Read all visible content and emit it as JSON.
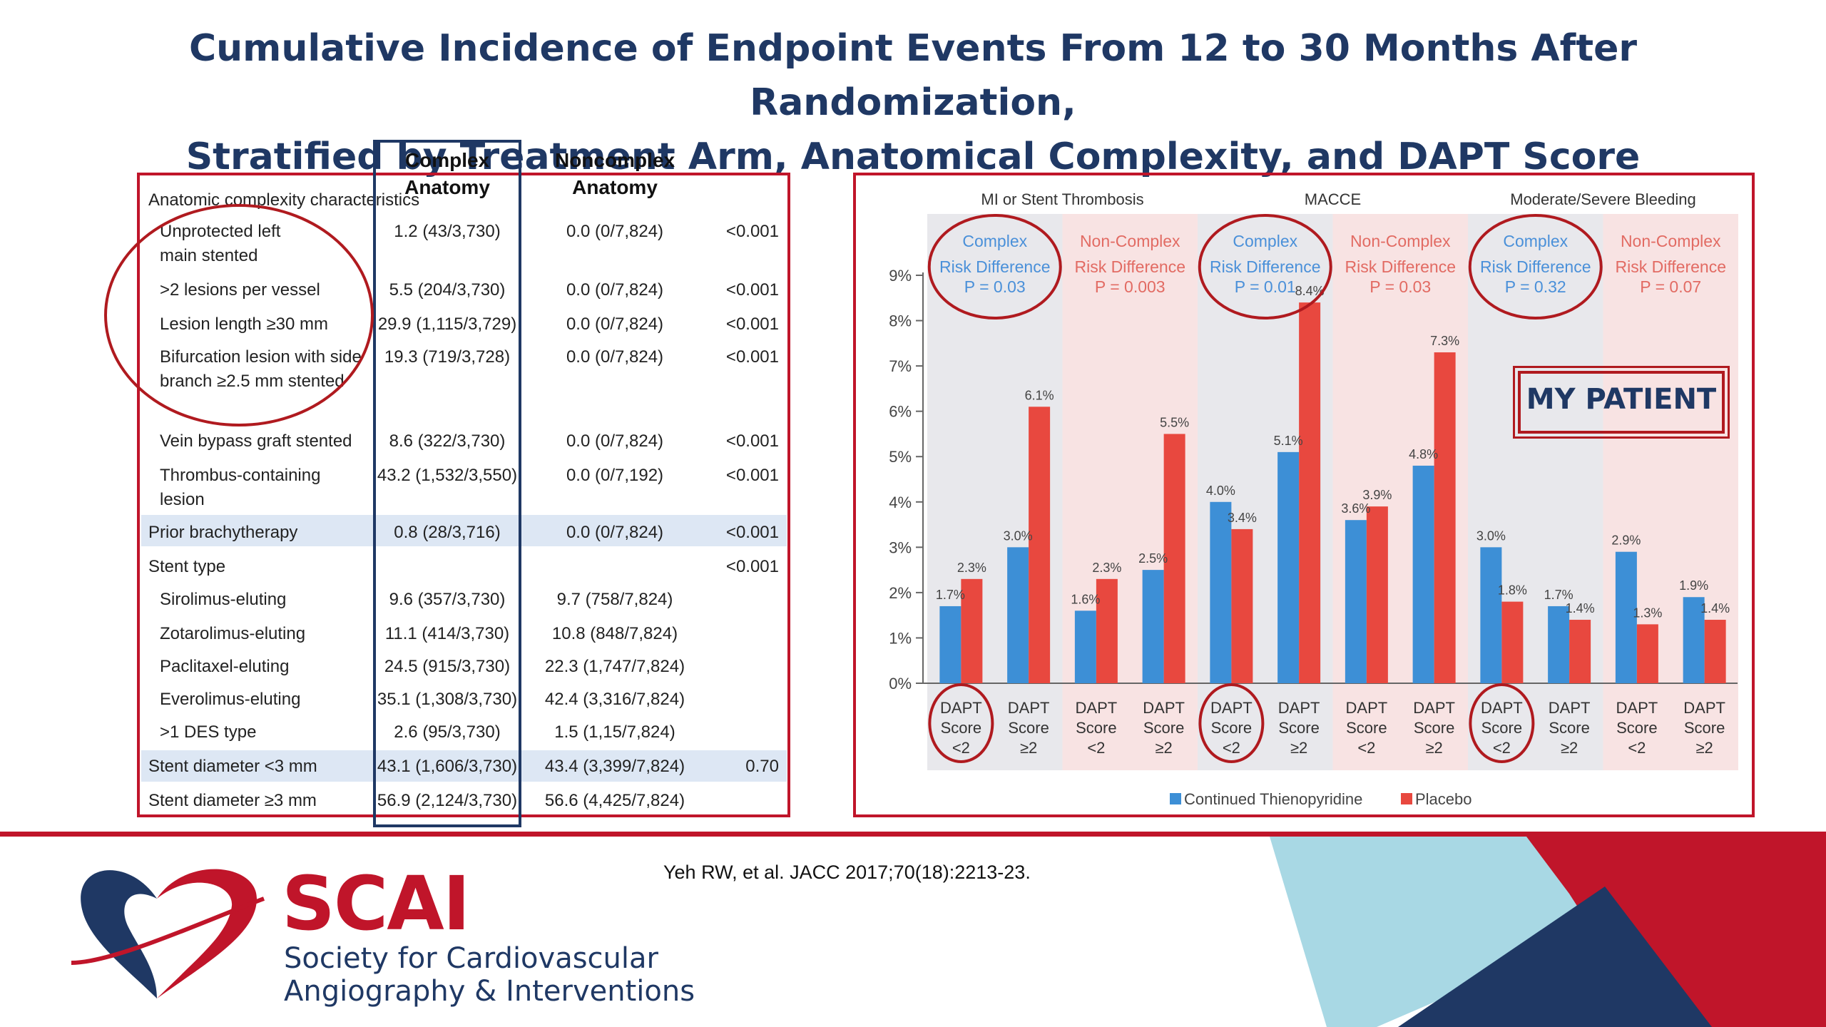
{
  "title": {
    "line1": "Cumulative Incidence of Endpoint Events From 12 to 30 Months After Randomization,",
    "line2": "Stratified by Treatment Arm, Anatomical Complexity, and DAPT Score"
  },
  "table": {
    "col_complex": "Complex\nAnatomy",
    "col_complex_1": "Complex",
    "col_complex_2": "Anatomy",
    "col_noncomplex_1": "Noncomplex",
    "col_noncomplex_2": "Anatomy",
    "section_header": "Anatomic complexity characteristics",
    "rows": [
      {
        "label": "Unprotected left main stented",
        "complex": "1.2 (43/3,730)",
        "noncomplex": "0.0 (0/7,824)",
        "p": "<0.001"
      },
      {
        "label": ">2 lesions per vessel",
        "complex": "5.5 (204/3,730)",
        "noncomplex": "0.0 (0/7,824)",
        "p": "<0.001"
      },
      {
        "label": "Lesion length ≥30 mm",
        "complex": "29.9 (1,115/3,729)",
        "noncomplex": "0.0 (0/7,824)",
        "p": "<0.001"
      },
      {
        "label": "Bifurcation lesion with side branch ≥2.5 mm stented",
        "complex": "19.3 (719/3,728)",
        "noncomplex": "0.0 (0/7,824)",
        "p": "<0.001"
      },
      {
        "label": "Vein bypass graft stented",
        "complex": "8.6 (322/3,730)",
        "noncomplex": "0.0 (0/7,824)",
        "p": "<0.001"
      },
      {
        "label": "Thrombus-containing lesion",
        "complex": "43.2 (1,532/3,550)",
        "noncomplex": "0.0 (0/7,192)",
        "p": "<0.001"
      },
      {
        "label": "Prior brachytherapy",
        "complex": "0.8 (28/3,716)",
        "noncomplex": "0.0 (0/7,824)",
        "p": "<0.001"
      },
      {
        "label": "Stent type",
        "complex": "",
        "noncomplex": "",
        "p": "<0.001"
      },
      {
        "label": "Sirolimus-eluting",
        "complex": "9.6 (357/3,730)",
        "noncomplex": "9.7 (758/7,824)",
        "p": ""
      },
      {
        "label": "Zotarolimus-eluting",
        "complex": "11.1 (414/3,730)",
        "noncomplex": "10.8 (848/7,824)",
        "p": ""
      },
      {
        "label": "Paclitaxel-eluting",
        "complex": "24.5 (915/3,730)",
        "noncomplex": "22.3 (1,747/7,824)",
        "p": ""
      },
      {
        "label": "Everolimus-eluting",
        "complex": "35.1 (1,308/3,730)",
        "noncomplex": "42.4 (3,316/7,824)",
        "p": ""
      },
      {
        "label": ">1 DES type",
        "complex": "2.6 (95/3,730)",
        "noncomplex": "1.5 (1,15/7,824)",
        "p": ""
      },
      {
        "label": "Stent diameter <3 mm",
        "complex": "43.1 (1,606/3,730)",
        "noncomplex": "43.4 (3,399/7,824)",
        "p": "0.70"
      },
      {
        "label": "Stent diameter ≥3 mm",
        "complex": "56.9 (2,124/3,730)",
        "noncomplex": "56.6 (4,425/7,824)",
        "p": ""
      }
    ]
  },
  "chart_data": {
    "type": "bar",
    "groups": [
      "MI or Stent Thrombosis",
      "MACCE",
      "Moderate/Severe Bleeding"
    ],
    "subgroups": [
      {
        "group": "MI or Stent Thrombosis",
        "name": "Complex",
        "rd_label": "Risk Difference",
        "p": "P = 0.03",
        "color": "#5b9bd5",
        "bg": "#e8e8ec"
      },
      {
        "group": "MI or Stent Thrombosis",
        "name": "Non-Complex",
        "rd_label": "Risk Difference",
        "p": "P = 0.003",
        "color": "#e8635a",
        "bg": "#f8e3e3"
      },
      {
        "group": "MACCE",
        "name": "Complex",
        "rd_label": "Risk Difference",
        "p": "P = 0.01",
        "color": "#5b9bd5",
        "bg": "#e8e8ec"
      },
      {
        "group": "MACCE",
        "name": "Non-Complex",
        "rd_label": "Risk Difference",
        "p": "P = 0.03",
        "color": "#e8635a",
        "bg": "#f8e3e3"
      },
      {
        "group": "Moderate/Severe Bleeding",
        "name": "Complex",
        "rd_label": "Risk Difference",
        "p": "P = 0.32",
        "color": "#5b9bd5",
        "bg": "#e8e8ec"
      },
      {
        "group": "Moderate/Severe Bleeding",
        "name": "Non-Complex",
        "rd_label": "Risk Difference",
        "p": "P = 0.07",
        "color": "#e8635a",
        "bg": "#f8e3e3"
      }
    ],
    "categories": [
      "DAPT Score <2",
      "DAPT Score ≥2",
      "DAPT Score <2",
      "DAPT Score ≥2",
      "DAPT Score <2",
      "DAPT Score ≥2",
      "DAPT Score <2",
      "DAPT Score ≥2",
      "DAPT Score <2",
      "DAPT Score ≥2",
      "DAPT Score <2",
      "DAPT Score ≥2"
    ],
    "category_lines": [
      [
        "DAPT",
        "Score",
        "<2"
      ],
      [
        "DAPT",
        "Score",
        "≥2"
      ]
    ],
    "series": [
      {
        "name": "Continued Thienopyridine",
        "color": "#3d8fd6",
        "values": [
          1.7,
          3.0,
          1.6,
          2.5,
          4.0,
          5.1,
          3.6,
          4.8,
          3.0,
          1.7,
          2.9,
          1.9
        ]
      },
      {
        "name": "Placebo",
        "color": "#e8483f",
        "values": [
          2.3,
          6.1,
          2.3,
          5.5,
          3.4,
          8.4,
          3.9,
          7.3,
          1.8,
          1.4,
          1.3,
          1.4
        ]
      }
    ],
    "value_labels": {
      "thienopyridine": [
        "1.7%",
        "3.0%",
        "1.6%",
        "2.5%",
        "4.0%",
        "5.1%",
        "3.6%",
        "4.8%",
        "3.0%",
        "1.7%",
        "2.9%",
        "1.9%"
      ],
      "placebo": [
        "2.3%",
        "6.1%",
        "2.3%",
        "5.5%",
        "3.4%",
        "8.4%",
        "3.9%",
        "7.3%",
        "1.8%",
        "1.4%",
        "1.3%",
        "1.4%"
      ]
    },
    "ylim": [
      0,
      9
    ],
    "yticks": [
      "0%",
      "1%",
      "2%",
      "3%",
      "4%",
      "5%",
      "6%",
      "7%",
      "8%",
      "9%"
    ],
    "legend_placement": "bottom-center",
    "grid": false
  },
  "annotation": {
    "my_patient": "MY PATIENT"
  },
  "citation": "Yeh RW, et al. JACC 2017;70(18):2213-23.",
  "brand": {
    "name": "SCAI",
    "line1": "Society for Cardiovascular",
    "line2": "Angiography & Interventions",
    "red": "#c0152a",
    "navy": "#1f3864"
  }
}
